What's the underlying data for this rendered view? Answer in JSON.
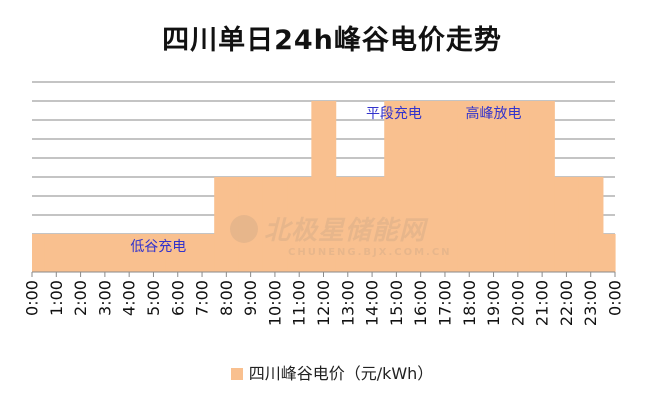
{
  "chart_data": {
    "type": "area",
    "title": "四川单日24h峰谷电价走势",
    "legend": {
      "label": "四川峰谷电价（元/kWh）",
      "position": "bottom"
    },
    "x_labels": [
      "0:00",
      "1:00",
      "2:00",
      "3:00",
      "4:00",
      "5:00",
      "6:00",
      "7:00",
      "8:00",
      "9:00",
      "10:00",
      "11:00",
      "12:00",
      "13:00",
      "14:00",
      "15:00",
      "16:00",
      "17:00",
      "18:00",
      "19:00",
      "20:00",
      "21:00",
      "22:00",
      "23:00",
      "0:00"
    ],
    "hourly_level": [
      2,
      2,
      2,
      2,
      2,
      2,
      2,
      2,
      5,
      5,
      5,
      5,
      9,
      5,
      5,
      9,
      9,
      9,
      9,
      9,
      9,
      9,
      5,
      5,
      2
    ],
    "ylim": [
      0,
      10
    ],
    "grid_lines": 10,
    "fill_color": "#f9c08f",
    "annotations": [
      {
        "text": "低谷充电",
        "hour": 5.2
      },
      {
        "text": "平段充电",
        "hour": 14.9
      },
      {
        "text": "高峰放电",
        "hour": 19.0
      }
    ],
    "annotation_color": "#3333cc"
  },
  "watermark": {
    "main": "北极星储能网",
    "sub": "CHUNENG.BJX.COM.CN"
  }
}
